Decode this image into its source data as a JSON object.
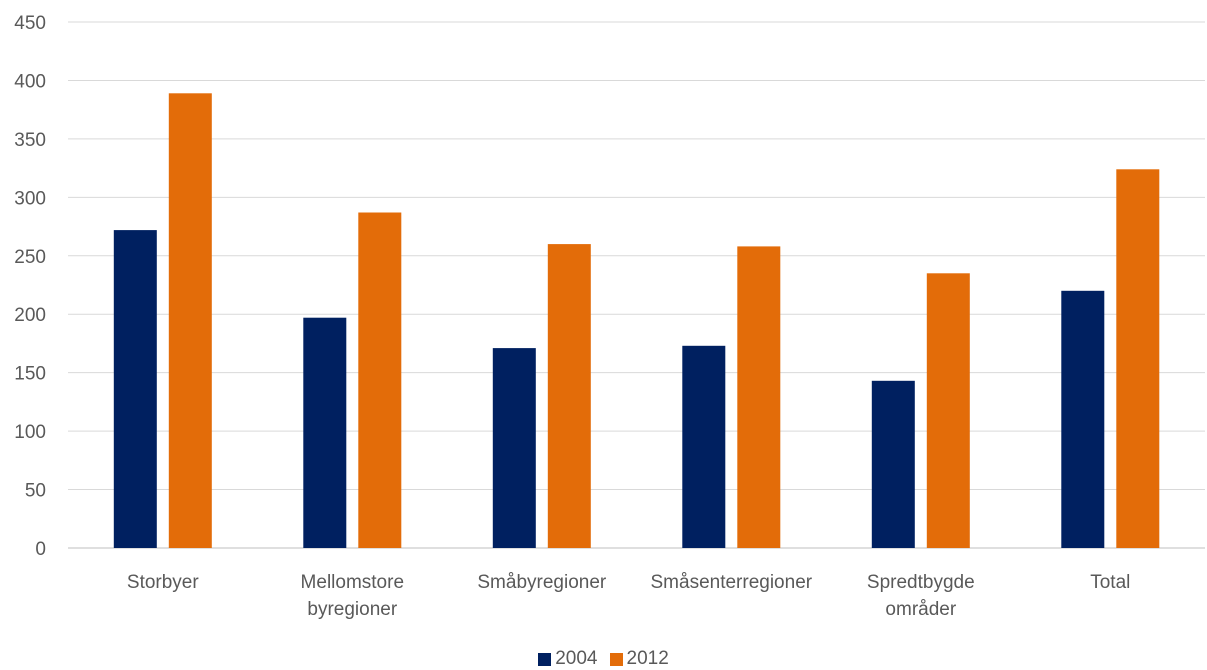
{
  "chart_data": {
    "type": "bar",
    "categories": [
      [
        "Storbyer"
      ],
      [
        "Mellomstore",
        "byregioner"
      ],
      [
        "Småbyregioner"
      ],
      [
        "Småsenterregioner"
      ],
      [
        "Spredtbygde",
        "områder"
      ],
      [
        "Total"
      ]
    ],
    "series": [
      {
        "name": "2004",
        "color": "#002060",
        "values": [
          272,
          197,
          171,
          173,
          143,
          220
        ]
      },
      {
        "name": "2012",
        "color": "#E36C09",
        "values": [
          389,
          287,
          260,
          258,
          235,
          324
        ]
      }
    ],
    "ylim": [
      0,
      450
    ],
    "yticks": [
      0,
      50,
      100,
      150,
      200,
      250,
      300,
      350,
      400,
      450
    ],
    "grid": true,
    "legend_position": "bottom"
  }
}
